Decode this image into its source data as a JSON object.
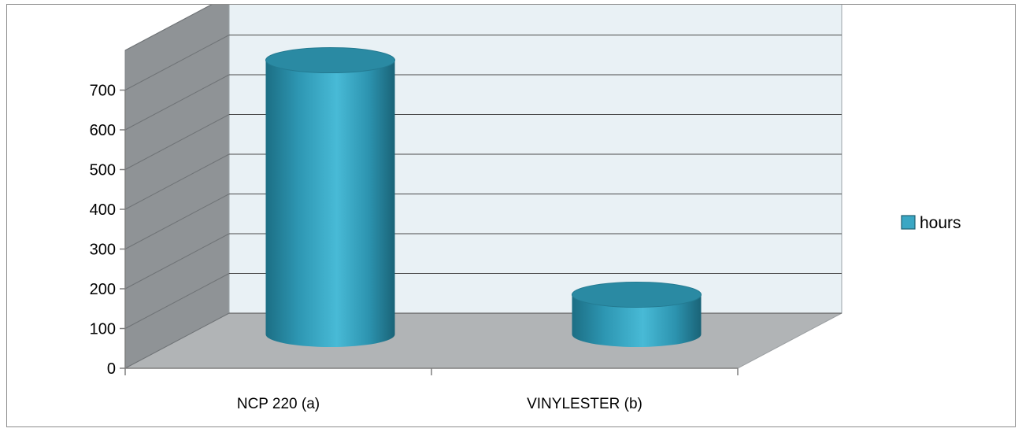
{
  "chart_data": {
    "type": "bar",
    "style": "3d-cylinder",
    "categories": [
      "NCP 220 (a)",
      "VINYLESTER (b)"
    ],
    "series": [
      {
        "name": "hours",
        "values": [
          690,
          100
        ],
        "color": "#3aa7c4"
      }
    ],
    "title": "",
    "xlabel": "",
    "ylabel": "",
    "ylim": [
      0,
      700
    ],
    "yticks": [
      "0",
      "100",
      "200",
      "300",
      "400",
      "500",
      "600",
      "700"
    ],
    "grid": true,
    "legend": "right",
    "colors": {
      "back_wall": "#e9f1f5",
      "side_wall": "#8f9396",
      "floor": "#b1b4b6",
      "gridline": "#4a4a4a"
    }
  }
}
